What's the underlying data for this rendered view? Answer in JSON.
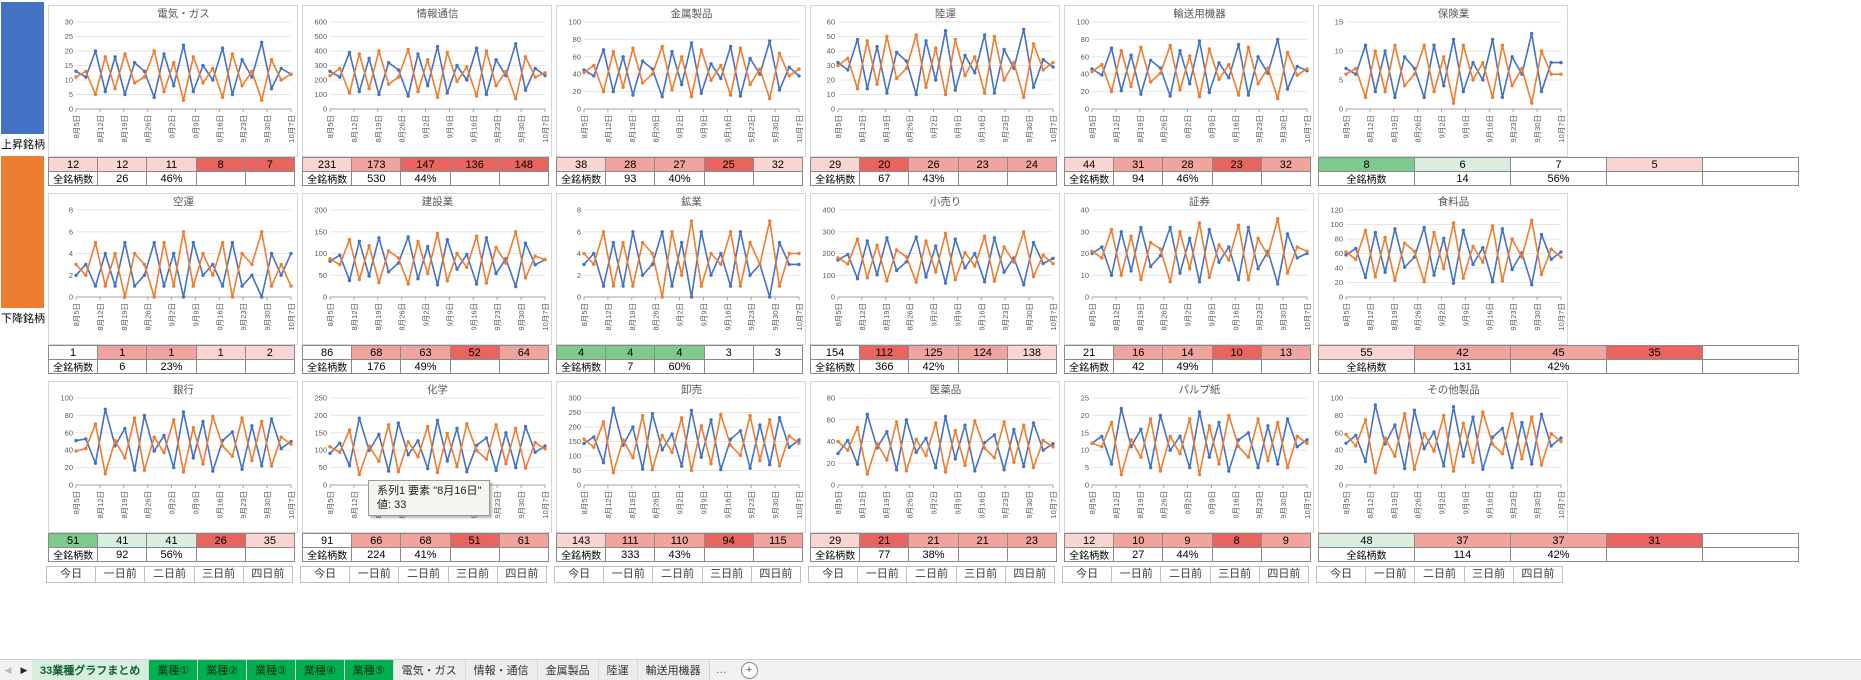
{
  "sidebar": {
    "rising_label": "上昇銘柄",
    "falling_label": "下降銘柄"
  },
  "colors": {
    "blue": "#4472C4",
    "orange": "#ED7D31"
  },
  "x_labels": [
    "8月5日",
    "8月12日",
    "8月19日",
    "8月26日",
    "9月2日",
    "9月9日",
    "9月16日",
    "9月23日",
    "9月30日",
    "10月7日"
  ],
  "stats_header": [
    "今日",
    "一日前",
    "二日前",
    "三日前",
    "四日前"
  ],
  "total_label": "全銘柄数",
  "tooltip": {
    "line1": "系列1 要素 \"8月16日\"",
    "line2": "値: 33"
  },
  "sheet_tabs": {
    "nav_left": "◀",
    "nav_right": "▶",
    "tabs": [
      {
        "label": "33業種グラフまとめ",
        "style": "active"
      },
      {
        "label": "業種①",
        "style": "green"
      },
      {
        "label": "業種②",
        "style": "green"
      },
      {
        "label": "業種③",
        "style": "green"
      },
      {
        "label": "業種④",
        "style": "green"
      },
      {
        "label": "業種⑤",
        "style": "green"
      },
      {
        "label": "電気・ガス",
        "style": "plain"
      },
      {
        "label": "情報・通信",
        "style": "plain"
      },
      {
        "label": "金属製品",
        "style": "plain"
      },
      {
        "label": "陸運",
        "style": "plain"
      },
      {
        "label": "輸送用機器",
        "style": "plain"
      }
    ],
    "overflow": "…",
    "add_label": "+"
  },
  "sectors": [
    {
      "name": "電気・ガス",
      "ymax": 30,
      "ystep": 5,
      "total": 26,
      "pct": "46%",
      "daily": [
        12,
        12,
        11,
        8,
        7
      ],
      "daily_colors": [
        "#F8D5D2",
        "#F8D5D2",
        "#F8D5D2",
        "#E8645E",
        "#E8645E"
      ],
      "blue": [
        13,
        11,
        20,
        6,
        18,
        5,
        16,
        13,
        4,
        19,
        8,
        22,
        6,
        15,
        10,
        21,
        5,
        17,
        11,
        23,
        7,
        14,
        12
      ],
      "orange": [
        11,
        13,
        5,
        18,
        7,
        19,
        9,
        11,
        20,
        6,
        16,
        3,
        18,
        9,
        14,
        4,
        19,
        8,
        13,
        3,
        17,
        10,
        12
      ]
    },
    {
      "name": "情報通信",
      "ymax": 600,
      "ystep": 100,
      "total": 530,
      "pct": "44%",
      "daily": [
        231,
        173,
        147,
        136,
        148
      ],
      "daily_colors": [
        "#F8D5D2",
        "#F1A39D",
        "#E8645E",
        "#E8645E",
        "#E8645E"
      ],
      "blue": [
        260,
        220,
        390,
        120,
        350,
        100,
        320,
        270,
        90,
        380,
        160,
        430,
        110,
        300,
        200,
        420,
        100,
        340,
        230,
        450,
        130,
        280,
        231
      ],
      "orange": [
        230,
        280,
        110,
        380,
        140,
        400,
        170,
        220,
        410,
        120,
        340,
        80,
        390,
        190,
        290,
        90,
        400,
        160,
        260,
        70,
        360,
        220,
        250
      ]
    },
    {
      "name": "金属製品",
      "ymax": 100,
      "ystep": 20,
      "total": 93,
      "pct": "40%",
      "daily": [
        38,
        28,
        27,
        25,
        32
      ],
      "daily_colors": [
        "#F8D5D2",
        "#F1A39D",
        "#F1A39D",
        "#E8645E",
        "#F8D5D2"
      ],
      "blue": [
        45,
        38,
        68,
        20,
        60,
        16,
        55,
        46,
        14,
        66,
        28,
        76,
        18,
        52,
        35,
        72,
        15,
        58,
        40,
        78,
        22,
        48,
        38
      ],
      "orange": [
        42,
        50,
        20,
        66,
        25,
        70,
        30,
        40,
        72,
        22,
        60,
        14,
        68,
        33,
        50,
        16,
        70,
        28,
        46,
        12,
        64,
        38,
        46
      ]
    },
    {
      "name": "陸運",
      "ymax": 60,
      "ystep": 10,
      "total": 67,
      "pct": "43%",
      "daily": [
        29,
        20,
        26,
        23,
        24
      ],
      "daily_colors": [
        "#F8D5D2",
        "#E8645E",
        "#F1A39D",
        "#F1A39D",
        "#F1A39D"
      ],
      "blue": [
        32,
        27,
        48,
        14,
        43,
        11,
        39,
        33,
        10,
        47,
        20,
        54,
        13,
        37,
        25,
        51,
        11,
        41,
        28,
        55,
        15,
        34,
        29
      ],
      "orange": [
        30,
        35,
        14,
        47,
        17,
        50,
        21,
        28,
        51,
        15,
        42,
        10,
        48,
        23,
        36,
        11,
        50,
        20,
        32,
        8,
        45,
        27,
        32
      ]
    },
    {
      "name": "輸送用機器",
      "ymax": 100,
      "ystep": 20,
      "total": 94,
      "pct": "46%",
      "daily": [
        44,
        31,
        28,
        23,
        32
      ],
      "daily_colors": [
        "#F8D5D2",
        "#F1A39D",
        "#F1A39D",
        "#E8645E",
        "#F1A39D"
      ],
      "blue": [
        46,
        39,
        70,
        21,
        62,
        17,
        56,
        47,
        15,
        67,
        29,
        78,
        19,
        53,
        36,
        74,
        16,
        60,
        41,
        80,
        23,
        49,
        44
      ],
      "orange": [
        43,
        51,
        20,
        67,
        26,
        71,
        31,
        41,
        73,
        22,
        61,
        14,
        69,
        34,
        51,
        16,
        71,
        29,
        47,
        12,
        65,
        39,
        46
      ]
    },
    {
      "name": "保険業",
      "ymax": 15,
      "ystep": 5,
      "total": 14,
      "pct": "56%",
      "daily": [
        8,
        6,
        7,
        5,
        ""
      ],
      "daily_colors": [
        "#7EC98E",
        "#D9EEDF",
        "#FFFFFF",
        "#F8D5D2",
        "#FFFFFF"
      ],
      "blue": [
        7,
        6,
        11,
        3,
        10,
        2,
        9,
        7,
        2,
        11,
        4,
        12,
        3,
        8,
        5,
        12,
        2,
        9,
        6,
        13,
        3,
        8,
        8
      ],
      "orange": [
        6,
        7,
        2,
        10,
        3,
        11,
        4,
        6,
        11,
        3,
        9,
        1,
        11,
        5,
        8,
        2,
        11,
        4,
        7,
        1,
        10,
        6,
        6
      ]
    },
    {
      "name": "空運",
      "ymax": 8,
      "ystep": 2,
      "total": 6,
      "pct": "23%",
      "daily": [
        1,
        1,
        1,
        1,
        2
      ],
      "daily_colors": [
        "#FFFFFF",
        "#F1A39D",
        "#F1A39D",
        "#F8D5D2",
        "#F8D5D2"
      ],
      "blue": [
        2,
        3,
        1,
        4,
        1,
        5,
        1,
        2,
        5,
        1,
        4,
        0,
        5,
        2,
        3,
        1,
        5,
        1,
        2,
        0,
        4,
        2,
        4
      ],
      "orange": [
        3,
        2,
        5,
        1,
        4,
        0,
        4,
        3,
        0,
        5,
        1,
        6,
        1,
        4,
        2,
        5,
        0,
        4,
        3,
        6,
        1,
        3,
        1
      ]
    },
    {
      "name": "建設業",
      "ymax": 200,
      "ystep": 50,
      "total": 176,
      "pct": "49%",
      "daily": [
        86,
        68,
        63,
        52,
        64
      ],
      "daily_colors": [
        "#FFFFFF",
        "#F1A39D",
        "#F1A39D",
        "#E8645E",
        "#F1A39D"
      ],
      "blue": [
        82,
        96,
        38,
        128,
        48,
        136,
        58,
        78,
        138,
        42,
        116,
        28,
        132,
        64,
        98,
        30,
        136,
        54,
        88,
        24,
        124,
        74,
        86
      ],
      "orange": [
        88,
        74,
        132,
        40,
        118,
        33,
        106,
        90,
        30,
        128,
        54,
        146,
        37,
        100,
        68,
        140,
        32,
        114,
        78,
        150,
        44,
        94,
        86
      ]
    },
    {
      "name": "鉱業",
      "ymax": 8,
      "ystep": 2,
      "total": 7,
      "pct": "60%",
      "daily": [
        4,
        4,
        4,
        3,
        3
      ],
      "daily_colors": [
        "#7EC98E",
        "#7EC98E",
        "#7EC98E",
        "#FFFFFF",
        "#FFFFFF"
      ],
      "blue": [
        3,
        4,
        1,
        5,
        1,
        6,
        2,
        3,
        6,
        1,
        5,
        0,
        6,
        2,
        4,
        1,
        6,
        2,
        3,
        0,
        5,
        3,
        3
      ],
      "orange": [
        4,
        3,
        6,
        1,
        5,
        1,
        5,
        4,
        0,
        6,
        2,
        7,
        1,
        4,
        3,
        6,
        1,
        5,
        3,
        7,
        1,
        4,
        4
      ]
    },
    {
      "name": "小売り",
      "ymax": 400,
      "ystep": 100,
      "total": 366,
      "pct": "42%",
      "daily": [
        154,
        112,
        125,
        124,
        138
      ],
      "daily_colors": [
        "#FFFFFF",
        "#E8645E",
        "#F1A39D",
        "#F1A39D",
        "#F8D5D2"
      ],
      "blue": [
        170,
        196,
        84,
        258,
        102,
        272,
        122,
        162,
        276,
        92,
        234,
        64,
        266,
        134,
        200,
        70,
        272,
        114,
        180,
        56,
        250,
        154,
        178
      ],
      "orange": [
        180,
        152,
        266,
        88,
        238,
        74,
        216,
        185,
        68,
        258,
        115,
        292,
        80,
        204,
        142,
        280,
        72,
        230,
        160,
        300,
        94,
        192,
        154
      ]
    },
    {
      "name": "証券",
      "ymax": 40,
      "ystep": 10,
      "total": 42,
      "pct": "49%",
      "daily": [
        21,
        16,
        14,
        10,
        13
      ],
      "daily_colors": [
        "#FFFFFF",
        "#F1A39D",
        "#F1A39D",
        "#E8645E",
        "#F1A39D"
      ],
      "blue": [
        20,
        23,
        10,
        30,
        12,
        32,
        14,
        19,
        32,
        11,
        27,
        7,
        31,
        16,
        23,
        8,
        32,
        13,
        21,
        6,
        29,
        18,
        20
      ],
      "orange": [
        21,
        18,
        31,
        10,
        28,
        8,
        25,
        22,
        7,
        30,
        13,
        34,
        9,
        24,
        17,
        33,
        8,
        27,
        19,
        36,
        11,
        23,
        21
      ]
    },
    {
      "name": "食料品",
      "ymax": 120,
      "ystep": 20,
      "total": 131,
      "pct": "42%",
      "daily": [
        55,
        42,
        45,
        35,
        ""
      ],
      "daily_colors": [
        "#F8D5D2",
        "#F1A39D",
        "#F1A39D",
        "#E8645E",
        "#FFFFFF"
      ],
      "blue": [
        58,
        67,
        27,
        89,
        34,
        94,
        41,
        55,
        96,
        30,
        81,
        19,
        92,
        45,
        68,
        21,
        94,
        38,
        61,
        17,
        86,
        52,
        62
      ],
      "orange": [
        62,
        52,
        92,
        28,
        82,
        23,
        74,
        63,
        21,
        89,
        39,
        102,
        26,
        70,
        48,
        98,
        22,
        80,
        55,
        106,
        31,
        66,
        55
      ]
    },
    {
      "name": "銀行",
      "ymax": 100,
      "ystep": 20,
      "total": 92,
      "pct": "56%",
      "daily": [
        51,
        41,
        41,
        26,
        35
      ],
      "daily_colors": [
        "#7EC98E",
        "#D9EEDF",
        "#D9EEDF",
        "#E8645E",
        "#F8D5D2"
      ],
      "blue": [
        51,
        53,
        25,
        87,
        45,
        65,
        17,
        80,
        39,
        57,
        20,
        84,
        31,
        73,
        16,
        51,
        61,
        18,
        68,
        22,
        76,
        42,
        50
      ],
      "orange": [
        39,
        42,
        70,
        13,
        51,
        31,
        77,
        17,
        55,
        37,
        75,
        15,
        66,
        24,
        79,
        45,
        33,
        77,
        28,
        73,
        22,
        55,
        47
      ]
    },
    {
      "name": "化学",
      "ymax": 250,
      "ystep": 50,
      "total": 224,
      "pct": "41%",
      "daily": [
        91,
        66,
        68,
        51,
        61
      ],
      "daily_colors": [
        "#FFFFFF",
        "#F1A39D",
        "#F1A39D",
        "#E8645E",
        "#F1A39D"
      ],
      "blue": [
        91,
        120,
        56,
        192,
        99,
        145,
        40,
        178,
        87,
        127,
        47,
        186,
        69,
        163,
        38,
        114,
        135,
        42,
        150,
        50,
        168,
        94,
        112
      ],
      "orange": [
        110,
        94,
        158,
        30,
        112,
        68,
        173,
        38,
        124,
        81,
        168,
        36,
        148,
        53,
        176,
        99,
        74,
        173,
        61,
        163,
        48,
        122,
        104
      ]
    },
    {
      "name": "卸売",
      "ymax": 300,
      "ystep": 50,
      "total": 333,
      "pct": "43%",
      "daily": [
        143,
        111,
        110,
        94,
        115
      ],
      "daily_colors": [
        "#F8D5D2",
        "#F1A39D",
        "#F1A39D",
        "#E8645E",
        "#F1A39D"
      ],
      "blue": [
        143,
        166,
        77,
        265,
        137,
        200,
        55,
        246,
        121,
        176,
        65,
        257,
        96,
        225,
        53,
        158,
        187,
        58,
        207,
        70,
        232,
        130,
        155
      ],
      "orange": [
        158,
        130,
        218,
        42,
        155,
        94,
        239,
        53,
        171,
        112,
        232,
        50,
        204,
        73,
        243,
        137,
        102,
        239,
        84,
        225,
        66,
        169,
        144
      ]
    },
    {
      "name": "医薬品",
      "ymax": 80,
      "ystep": 20,
      "total": 77,
      "pct": "38%",
      "daily": [
        29,
        21,
        21,
        21,
        23
      ],
      "daily_colors": [
        "#F8D5D2",
        "#E8645E",
        "#F1A39D",
        "#F1A39D",
        "#F1A39D"
      ],
      "blue": [
        29,
        41,
        19,
        65,
        34,
        49,
        14,
        60,
        30,
        43,
        16,
        63,
        24,
        55,
        13,
        39,
        46,
        14,
        51,
        17,
        57,
        32,
        38
      ],
      "orange": [
        40,
        32,
        53,
        10,
        38,
        23,
        58,
        13,
        42,
        27,
        57,
        12,
        50,
        18,
        59,
        34,
        25,
        58,
        21,
        55,
        16,
        41,
        35
      ]
    },
    {
      "name": "パルプ紙",
      "ymax": 25,
      "ystep": 5,
      "total": 27,
      "pct": "44%",
      "daily": [
        12,
        10,
        9,
        8,
        9
      ],
      "daily_colors": [
        "#F8D5D2",
        "#F1A39D",
        "#F1A39D",
        "#E8645E",
        "#F1A39D"
      ],
      "blue": [
        12,
        14,
        6,
        22,
        11,
        16,
        5,
        20,
        10,
        14,
        5,
        21,
        8,
        18,
        4,
        13,
        15,
        5,
        17,
        6,
        19,
        11,
        13
      ],
      "orange": [
        12,
        11,
        18,
        3,
        13,
        8,
        19,
        4,
        14,
        9,
        19,
        3,
        17,
        6,
        20,
        11,
        8,
        19,
        7,
        18,
        5,
        14,
        12
      ]
    },
    {
      "name": "その他製品",
      "ymax": 100,
      "ystep": 20,
      "total": 114,
      "pct": "42%",
      "daily": [
        48,
        37,
        37,
        31,
        ""
      ],
      "daily_colors": [
        "#D9EEDF",
        "#F1A39D",
        "#F1A39D",
        "#E8645E",
        "#FFFFFF"
      ],
      "blue": [
        48,
        57,
        27,
        92,
        47,
        69,
        19,
        86,
        42,
        61,
        22,
        90,
        33,
        78,
        18,
        55,
        65,
        20,
        72,
        24,
        81,
        45,
        54
      ],
      "orange": [
        58,
        45,
        75,
        14,
        54,
        33,
        82,
        18,
        59,
        39,
        80,
        16,
        71,
        26,
        84,
        47,
        36,
        82,
        30,
        78,
        23,
        59,
        50
      ]
    }
  ]
}
